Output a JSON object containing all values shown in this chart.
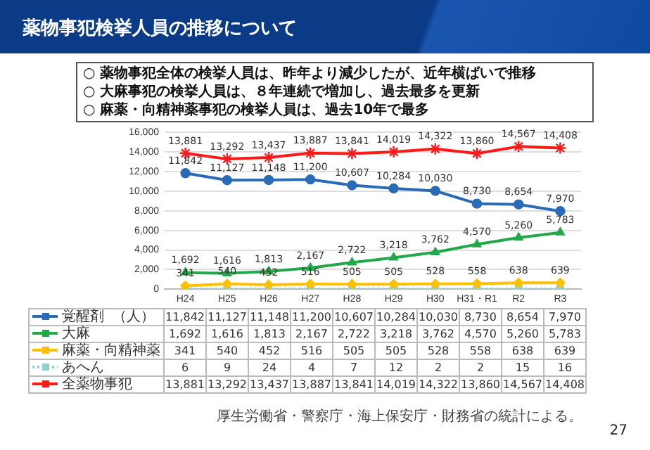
{
  "chart_data": {
    "type": "line",
    "title": "薬物事犯検挙人員の推移について",
    "annotations": [
      "○ 薬物事犯全体の検挙人員は、昨年より減少したが、近年横ばいで推移",
      "○ 大麻事犯の検挙人員は、８年連続で増加し、過去最多を更新",
      "○ 麻薬・向精神薬事犯の検挙人員は、過去10年で最多",
      "厚生労働省・警察庁・海上保安庁・財務省の統計による。",
      "27"
    ],
    "ylabel": "（人）",
    "categories": [
      "H24",
      "H25",
      "H26",
      "H27",
      "H28",
      "H29",
      "H30",
      "H31・R1",
      "R2",
      "R3"
    ],
    "series": [
      {
        "name": "覚醒剤",
        "color": "#2a6ab6",
        "marker": "circle",
        "values": [
          11842,
          11127,
          11148,
          11200,
          10607,
          10284,
          10030,
          8730,
          8654,
          7970
        ],
        "value_labels": [
          "11,842",
          "11,127",
          "11,148",
          "11,200",
          "10,607",
          "10,284",
          "10,030",
          "8,730",
          "8,654",
          "7,970"
        ]
      },
      {
        "name": "大麻",
        "color": "#22a84a",
        "marker": "triangle",
        "values": [
          1692,
          1616,
          1813,
          2167,
          2722,
          3218,
          3762,
          4570,
          5260,
          5783
        ],
        "value_labels": [
          "1,692",
          "1,616",
          "1,813",
          "2,167",
          "2,722",
          "3,218",
          "3,762",
          "4,570",
          "5,260",
          "5,783"
        ]
      },
      {
        "name": "麻薬・向精神薬",
        "color": "#ffc000",
        "marker": "diamond",
        "values": [
          341,
          540,
          452,
          516,
          505,
          505,
          528,
          558,
          638,
          639
        ],
        "value_labels": [
          "341",
          "540",
          "452",
          "516",
          "505",
          "505",
          "528",
          "558",
          "638",
          "639"
        ]
      },
      {
        "name": "あへん",
        "color": "#8fd0d0",
        "marker": "square",
        "line_style": "dotted",
        "values": [
          6,
          9,
          24,
          4,
          7,
          12,
          2,
          2,
          15,
          16
        ]
      },
      {
        "name": "全薬物事犯",
        "color": "#ff1a1a",
        "marker": "cross",
        "values": [
          13881,
          13292,
          13437,
          13887,
          13841,
          14019,
          14322,
          13860,
          14567,
          14408
        ],
        "value_labels": [
          "13,881",
          "13,292",
          "13,437",
          "13,887",
          "13,841",
          "14,019",
          "14,322",
          "13,860",
          "14,567",
          "14,408"
        ]
      }
    ],
    "ylim": [
      0,
      16000
    ],
    "yticks": [
      0,
      {
        "value": 2000,
        "label": "2,000"
      },
      {
        "value": 4000,
        "label": "4,000"
      },
      {
        "value": 6000,
        "label": "6,000"
      },
      {
        "value": 8000,
        "label": "8,000"
      },
      {
        "value": 10000,
        "label": "10,000"
      },
      {
        "value": 12000,
        "label": "12,000"
      },
      {
        "value": 14000,
        "label": "14,000"
      },
      {
        "value": 16000,
        "label": "16,000"
      }
    ],
    "grid": "y",
    "legend": "bottom",
    "data_labels": true
  }
}
